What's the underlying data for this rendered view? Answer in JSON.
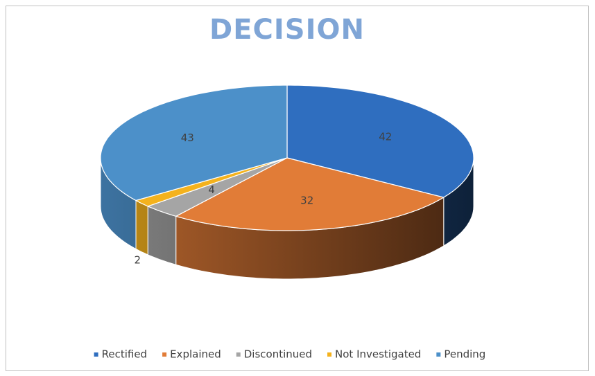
{
  "chart_data": {
    "type": "pie",
    "title": "DECISION",
    "categories": [
      "Rectified",
      "Explained",
      "Discontinued",
      "Not Investigated",
      "Pending"
    ],
    "values": [
      42,
      32,
      4,
      2,
      43
    ],
    "colors": [
      "#2f6ebf",
      "#e17c37",
      "#a5a5a5",
      "#f4b21d",
      "#4c90c9"
    ],
    "legend": "bottom"
  }
}
